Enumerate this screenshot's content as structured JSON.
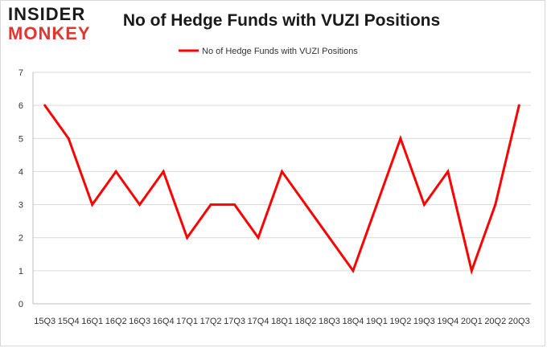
{
  "logo": {
    "line1": "INSIDER",
    "line2": "MONKEY"
  },
  "chart_data": {
    "type": "line",
    "title": "No of Hedge Funds with VUZI Positions",
    "xlabel": "",
    "ylabel": "",
    "categories": [
      "15Q3",
      "15Q4",
      "16Q1",
      "16Q2",
      "16Q3",
      "16Q4",
      "17Q1",
      "17Q2",
      "17Q3",
      "17Q4",
      "18Q1",
      "18Q2",
      "18Q3",
      "18Q4",
      "19Q1",
      "19Q2",
      "19Q3",
      "19Q4",
      "20Q1",
      "20Q2",
      "20Q3"
    ],
    "series": [
      {
        "name": "No of Hedge Funds with VUZI  Positions",
        "color": "#ff0000",
        "values": [
          6,
          5,
          3,
          4,
          3,
          4,
          2,
          3,
          3,
          2,
          4,
          3,
          2,
          1,
          3,
          5,
          3,
          4,
          1,
          3,
          6
        ]
      }
    ],
    "ylim": [
      0,
      7
    ],
    "yticks": [
      0,
      1,
      2,
      3,
      4,
      5,
      6,
      7
    ],
    "grid": true,
    "legend": "top-center"
  }
}
